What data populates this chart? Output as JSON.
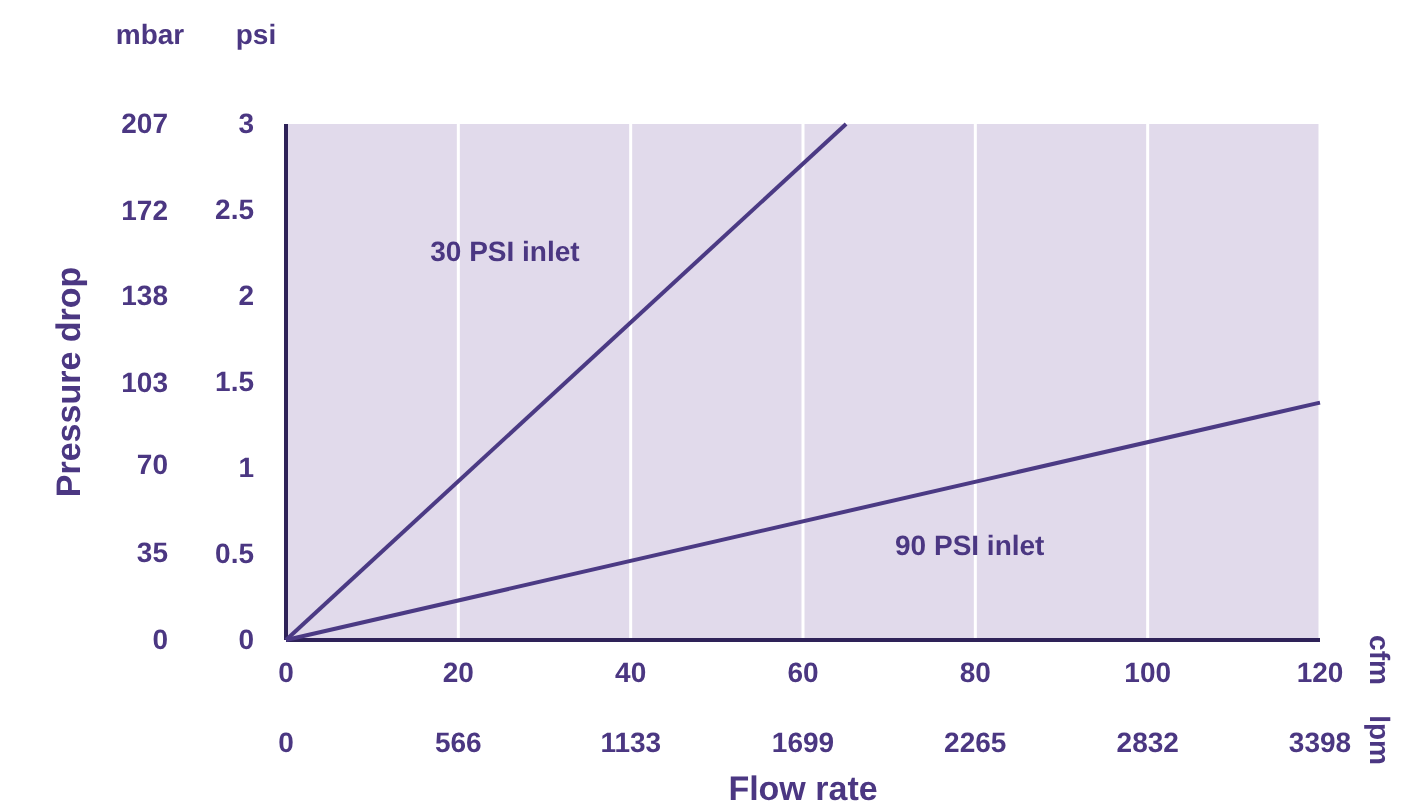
{
  "chart_data": {
    "type": "line",
    "xlabel": "Flow rate",
    "ylabel": "Pressure drop",
    "y2label": "psi",
    "x2label": "lpm",
    "annotations": [
      "mbar",
      "cfm"
    ],
    "xlim": [
      0,
      120
    ],
    "xticks": [
      0,
      20,
      40,
      60,
      80,
      100,
      120
    ],
    "x2lim": [
      0,
      3398
    ],
    "x2ticks": [
      0,
      566,
      1133,
      1699,
      2265,
      2832,
      3398
    ],
    "ylim": [
      0,
      207
    ],
    "yticks": [
      0,
      35,
      70,
      103,
      138,
      172,
      207
    ],
    "y2lim": [
      0,
      3
    ],
    "y2ticks": [
      0,
      0.5,
      1,
      1.5,
      2,
      2.5,
      3
    ],
    "grid": "x",
    "marker": "none",
    "line_style": "solid",
    "series": [
      {
        "name": "30 PSI inlet",
        "color": "#4b3a84",
        "axis": "y2",
        "x": [
          0,
          65
        ],
        "values": [
          0,
          3
        ]
      },
      {
        "name": "90 PSI inlet",
        "color": "#4b3a84",
        "axis": "y2",
        "x": [
          0,
          120
        ],
        "values": [
          0,
          1.38
        ]
      }
    ]
  }
}
